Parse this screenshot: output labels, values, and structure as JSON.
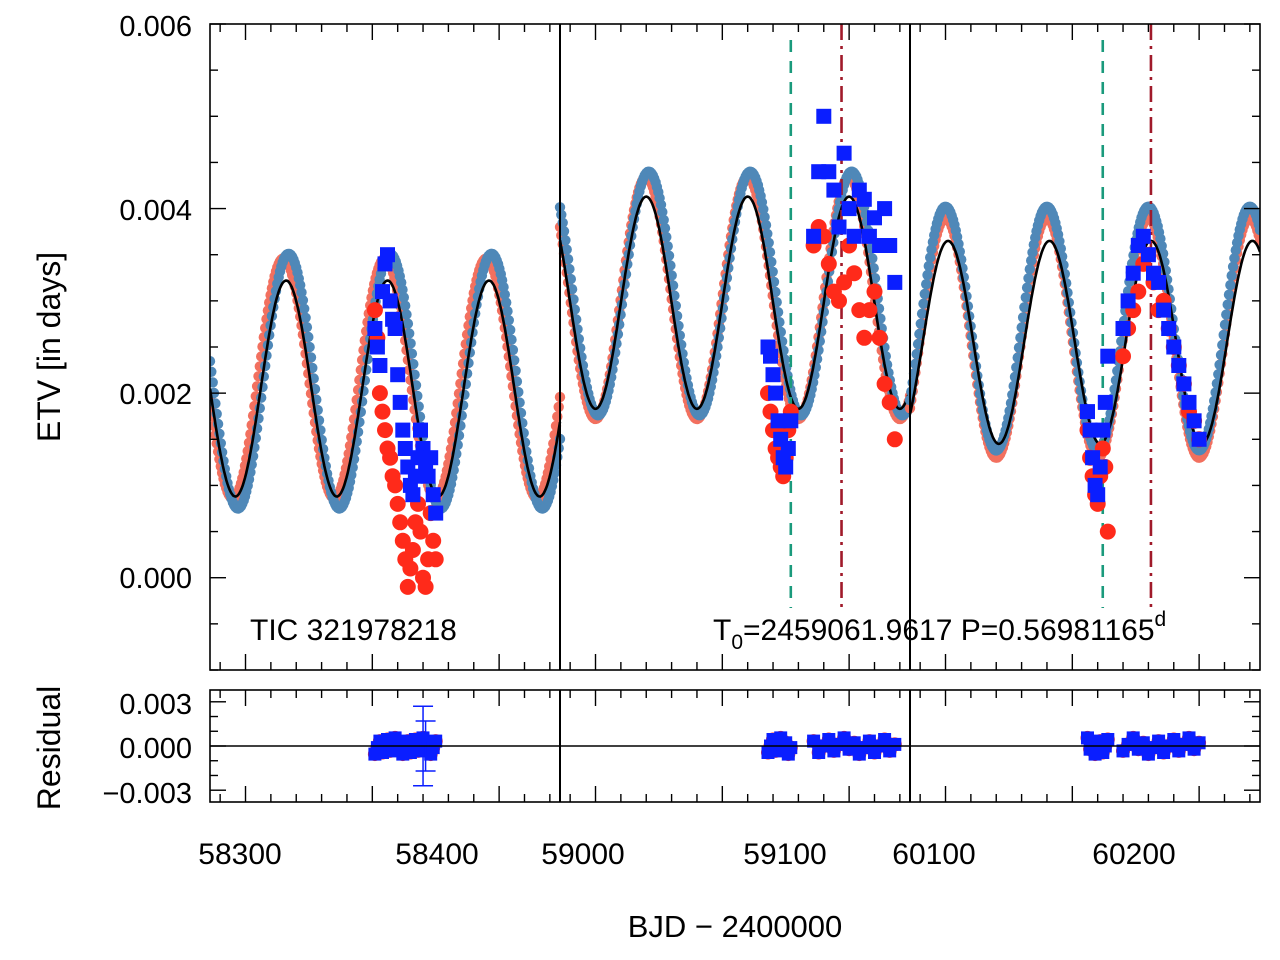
{
  "chart_data": {
    "type": "scatter",
    "panels": {
      "main": {
        "ylabel": "ETV [in days]",
        "ylim": [
          -0.001,
          0.006
        ],
        "yticks": [
          "0.000",
          "0.002",
          "0.004",
          "0.006"
        ],
        "annotation_left": "TIC 321978218",
        "annotation_right": {
          "t0_prefix": "T",
          "t0_sub": "0",
          "t0_value": "=2459061.9617 P=0.56981165",
          "p_sup": "d"
        }
      },
      "residual": {
        "ylabel": "Residual",
        "ylim": [
          -0.0038,
          0.0038
        ],
        "yticks": [
          "0.003",
          "0.000",
          "−0.003"
        ]
      }
    },
    "xlabel": "BJD − 2400000",
    "segments": [
      {
        "xlim": [
          58286,
          58424
        ],
        "xticks": [
          "58300",
          "58400"
        ],
        "tick_values": [
          58300,
          58400
        ],
        "curve_primary": {
          "offset": 0.00216,
          "amp": 0.0013,
          "period": 40.0,
          "peak": 58395
        },
        "curve_secondary": {
          "offset": 0.00213,
          "amp": 0.00138,
          "period": 40.0,
          "peak": 58397
        },
        "curve_model": {
          "offset": 0.00205,
          "amp": 0.00117,
          "period": 40.0,
          "peak": 58396
        },
        "events_primary": [],
        "events_secondary": []
      },
      {
        "xlim": [
          58986,
          59124
        ],
        "xticks": [
          "59000",
          "59100"
        ],
        "tick_values": [
          59000,
          59100
        ],
        "curve_primary": {
          "offset": 0.00303,
          "amp": 0.00131,
          "period": 40.0,
          "peak": 59100
        },
        "curve_secondary": {
          "offset": 0.00308,
          "amp": 0.00132,
          "period": 40.0,
          "peak": 59101
        },
        "curve_model": {
          "offset": 0.00298,
          "amp": 0.00115,
          "period": 40.0,
          "peak": 59100
        },
        "events_primary": [
          59077
        ],
        "events_secondary": [
          59097
        ]
      },
      {
        "xlim": [
          60086,
          60224
        ],
        "xticks": [
          "60100",
          "60200"
        ],
        "tick_values": [
          60100,
          60200
        ],
        "curve_primary": {
          "offset": 0.0026,
          "amp": 0.0013,
          "period": 40.0,
          "peak": 60140
        },
        "curve_secondary": {
          "offset": 0.0027,
          "amp": 0.00132,
          "period": 40.0,
          "peak": 60140
        },
        "curve_model": {
          "offset": 0.00255,
          "amp": 0.0011,
          "period": 40.0,
          "peak": 60141
        },
        "events_primary": [
          60162
        ],
        "events_secondary": [
          60181
        ]
      }
    ],
    "series": [
      {
        "kind": "primary_etv",
        "marker": "circle",
        "color": "#ff2a1a",
        "points": [
          [
            58351,
            0.0029
          ],
          [
            58352,
            0.0026
          ],
          [
            58353,
            0.002
          ],
          [
            58354,
            0.0018
          ],
          [
            58355,
            0.0016
          ],
          [
            58356,
            0.0014
          ],
          [
            58357,
            0.0013
          ],
          [
            58358,
            0.0011
          ],
          [
            58359,
            0.001
          ],
          [
            58360,
            0.0008
          ],
          [
            58361,
            0.0006
          ],
          [
            58362,
            0.0004
          ],
          [
            58363,
            0.0002
          ],
          [
            58364,
            -0.0001
          ],
          [
            58365,
            0.0001
          ],
          [
            58366,
            0.0003
          ],
          [
            58367,
            0.0006
          ],
          [
            58368,
            0.0008
          ],
          [
            58369,
            0.0005
          ],
          [
            58370,
            0.0
          ],
          [
            58371,
            -0.0001
          ],
          [
            58372,
            0.0002
          ],
          [
            58373,
            0.0007
          ],
          [
            58374,
            0.0004
          ],
          [
            58375,
            0.0002
          ],
          [
            59068,
            0.002
          ],
          [
            59069,
            0.0018
          ],
          [
            59070,
            0.0016
          ],
          [
            59071,
            0.0014
          ],
          [
            59072,
            0.0013
          ],
          [
            59073,
            0.0012
          ],
          [
            59074,
            0.0011
          ],
          [
            59075,
            0.0013
          ],
          [
            59076,
            0.0016
          ],
          [
            59077,
            0.0018
          ],
          [
            59086,
            0.0036
          ],
          [
            59088,
            0.0038
          ],
          [
            59090,
            0.0037
          ],
          [
            59092,
            0.0034
          ],
          [
            59094,
            0.0031
          ],
          [
            59096,
            0.003
          ],
          [
            59098,
            0.0032
          ],
          [
            59100,
            0.0036
          ],
          [
            59102,
            0.0033
          ],
          [
            59104,
            0.0029
          ],
          [
            59106,
            0.0026
          ],
          [
            59108,
            0.0029
          ],
          [
            59110,
            0.0031
          ],
          [
            59112,
            0.0026
          ],
          [
            59114,
            0.0021
          ],
          [
            59116,
            0.0019
          ],
          [
            59118,
            0.0015
          ],
          [
            60156,
            0.0016
          ],
          [
            60157,
            0.0013
          ],
          [
            60158,
            0.0011
          ],
          [
            60159,
            0.0009
          ],
          [
            60160,
            0.0008
          ],
          [
            60161,
            0.0011
          ],
          [
            60162,
            0.0014
          ],
          [
            60163,
            0.0012
          ],
          [
            60164,
            0.0005
          ],
          [
            60170,
            0.0024
          ],
          [
            60172,
            0.0027
          ],
          [
            60174,
            0.0029
          ],
          [
            60176,
            0.0031
          ],
          [
            60178,
            0.0034
          ],
          [
            60180,
            0.0035
          ],
          [
            60182,
            0.0032
          ],
          [
            60184,
            0.0029
          ],
          [
            60186,
            0.003
          ],
          [
            60188,
            0.0027
          ],
          [
            60190,
            0.0025
          ],
          [
            60192,
            0.0023
          ],
          [
            60194,
            0.0021
          ],
          [
            60196,
            0.0018
          ],
          [
            60198,
            0.0017
          ],
          [
            60200,
            0.0015
          ]
        ]
      },
      {
        "kind": "secondary_etv",
        "marker": "square",
        "color": "#0a1eff",
        "points": [
          [
            58351,
            0.0027
          ],
          [
            58352,
            0.0025
          ],
          [
            58353,
            0.0023
          ],
          [
            58354,
            0.0031
          ],
          [
            58355,
            0.0034
          ],
          [
            58356,
            0.0035
          ],
          [
            58357,
            0.003
          ],
          [
            58358,
            0.0028
          ],
          [
            58359,
            0.0027
          ],
          [
            58360,
            0.0022
          ],
          [
            58361,
            0.0019
          ],
          [
            58362,
            0.0016
          ],
          [
            58363,
            0.0014
          ],
          [
            58364,
            0.0012
          ],
          [
            58365,
            0.001
          ],
          [
            58366,
            0.0009
          ],
          [
            58367,
            0.0011
          ],
          [
            58368,
            0.0013
          ],
          [
            58369,
            0.0016
          ],
          [
            58370,
            0.0014
          ],
          [
            58371,
            0.0012
          ],
          [
            58372,
            0.0011
          ],
          [
            58373,
            0.0013
          ],
          [
            58374,
            0.0009
          ],
          [
            58375,
            0.0007
          ],
          [
            59068,
            0.0025
          ],
          [
            59069,
            0.0024
          ],
          [
            59070,
            0.0022
          ],
          [
            59071,
            0.002
          ],
          [
            59072,
            0.0017
          ],
          [
            59073,
            0.0015
          ],
          [
            59074,
            0.0013
          ],
          [
            59075,
            0.0012
          ],
          [
            59076,
            0.0014
          ],
          [
            59077,
            0.0017
          ],
          [
            59086,
            0.0037
          ],
          [
            59088,
            0.0044
          ],
          [
            59090,
            0.005
          ],
          [
            59092,
            0.0044
          ],
          [
            59094,
            0.0042
          ],
          [
            59096,
            0.0038
          ],
          [
            59098,
            0.0046
          ],
          [
            59100,
            0.004
          ],
          [
            59102,
            0.0037
          ],
          [
            59104,
            0.0042
          ],
          [
            59106,
            0.0041
          ],
          [
            59108,
            0.0037
          ],
          [
            59110,
            0.0039
          ],
          [
            59112,
            0.0036
          ],
          [
            59114,
            0.004
          ],
          [
            59116,
            0.0036
          ],
          [
            59118,
            0.0032
          ],
          [
            60156,
            0.0018
          ],
          [
            60157,
            0.0016
          ],
          [
            60158,
            0.0013
          ],
          [
            60159,
            0.001
          ],
          [
            60160,
            0.0009
          ],
          [
            60161,
            0.0012
          ],
          [
            60162,
            0.0016
          ],
          [
            60163,
            0.0019
          ],
          [
            60164,
            0.0024
          ],
          [
            60170,
            0.0027
          ],
          [
            60172,
            0.003
          ],
          [
            60174,
            0.0033
          ],
          [
            60176,
            0.0036
          ],
          [
            60178,
            0.0037
          ],
          [
            60180,
            0.0035
          ],
          [
            60182,
            0.0033
          ],
          [
            60184,
            0.0032
          ],
          [
            60186,
            0.0029
          ],
          [
            60188,
            0.0027
          ],
          [
            60190,
            0.0025
          ],
          [
            60192,
            0.0023
          ],
          [
            60194,
            0.0021
          ],
          [
            60196,
            0.0019
          ],
          [
            60198,
            0.0017
          ],
          [
            60200,
            0.0015
          ]
        ]
      }
    ],
    "residual_errorbars": [
      [
        58370,
        0.0,
        0.0027
      ],
      [
        58371,
        0.0,
        0.0017
      ]
    ],
    "colors": {
      "primary_curve": "#f2705f",
      "secondary_curve": "#4f88b8",
      "model_curve": "#000000",
      "primary_event": "#1a9a7c",
      "secondary_event": "#a01a2a"
    }
  }
}
